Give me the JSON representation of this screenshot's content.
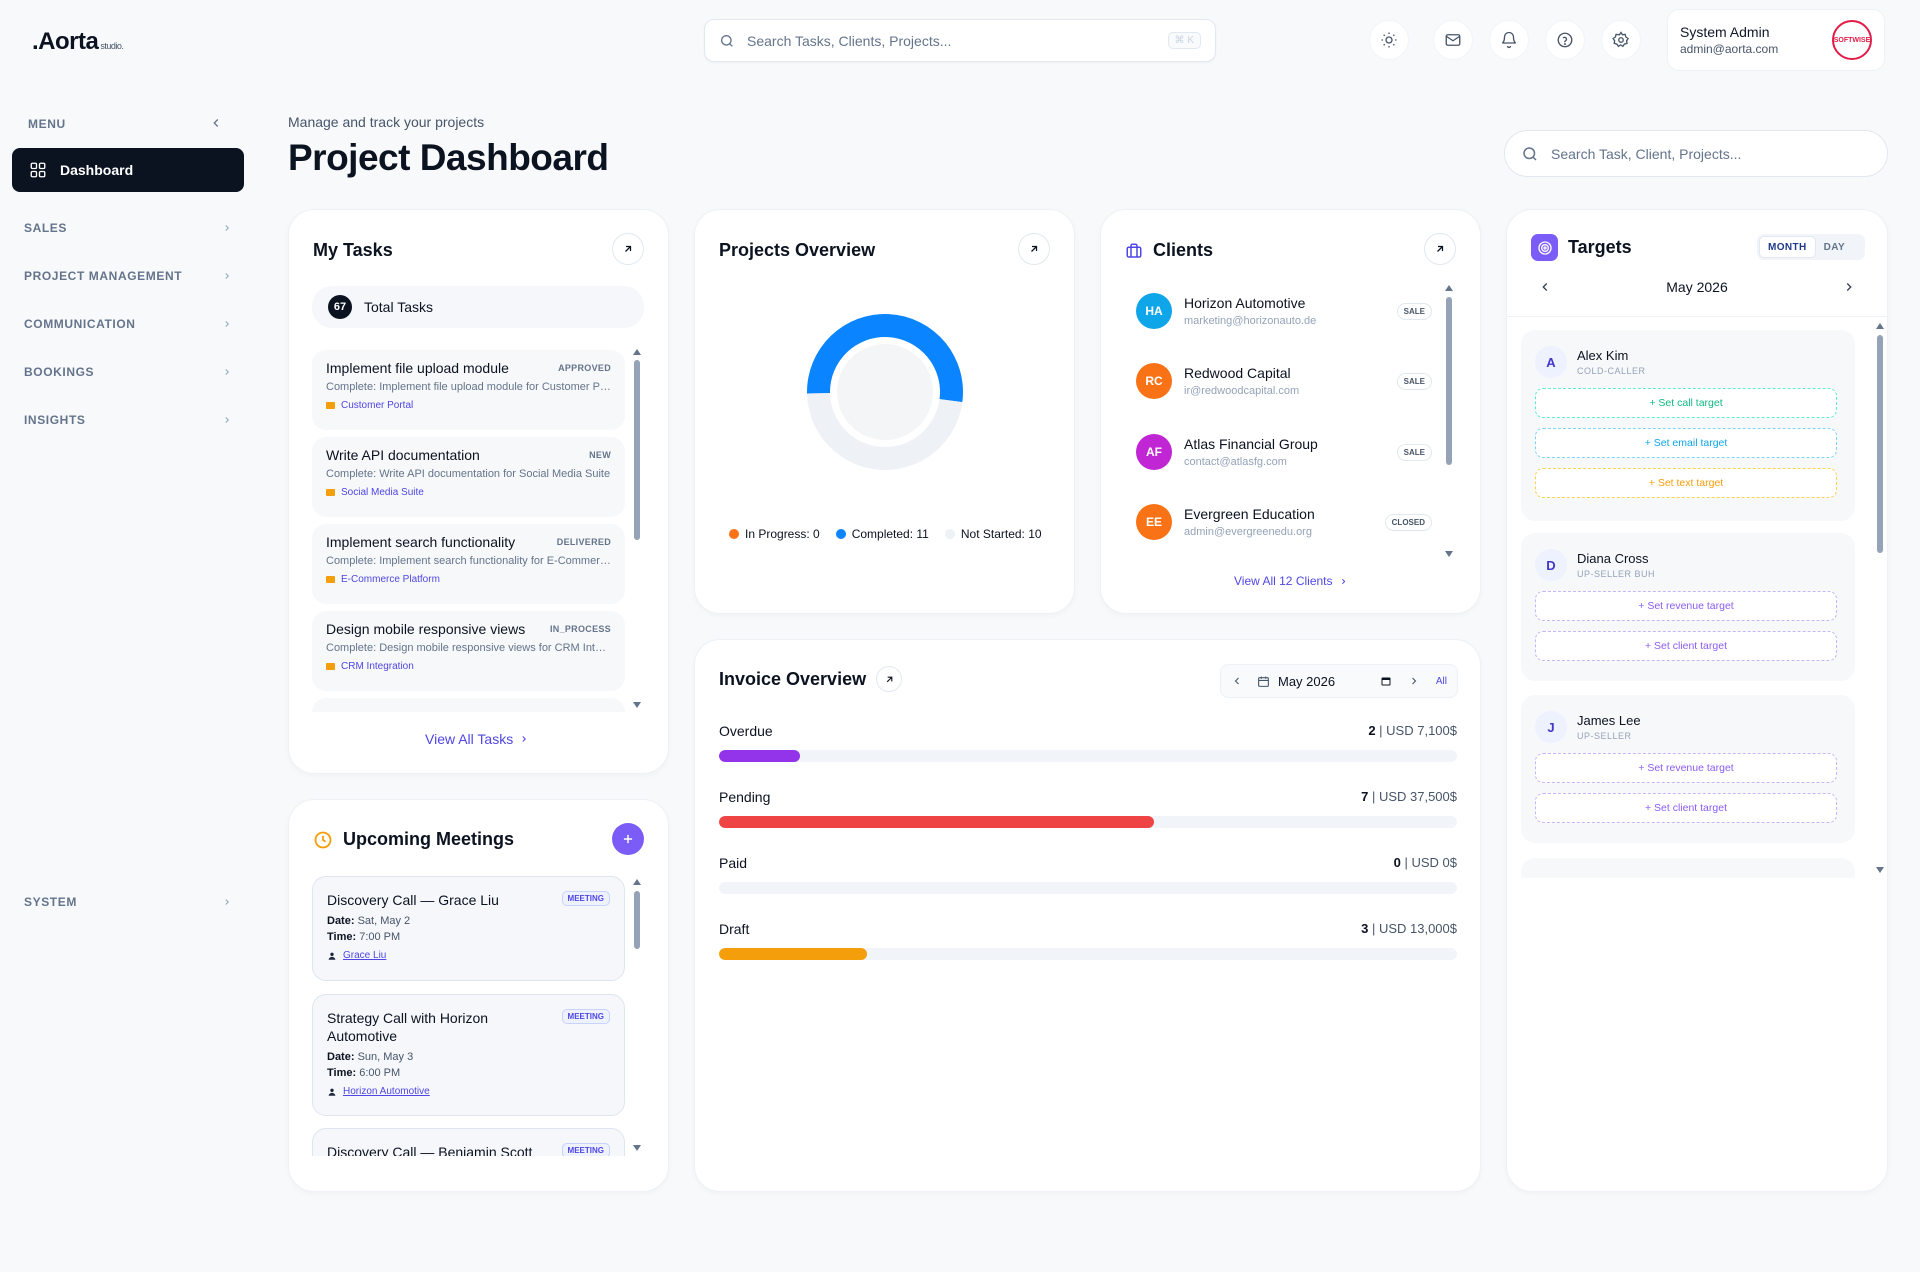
{
  "topbar": {
    "logo": ".Aorta",
    "logo_suffix": "studio.",
    "search_placeholder": "Search Tasks, Clients, Projects...",
    "shortcut": "⌘ K",
    "user_name": "System Admin",
    "user_email": "admin@aorta.com",
    "avatar_text": "SOFTWISE"
  },
  "sidebar": {
    "menu_label": "MENU",
    "active": "Dashboard",
    "items": [
      {
        "label": "SALES"
      },
      {
        "label": "PROJECT MANAGEMENT"
      },
      {
        "label": "COMMUNICATION"
      },
      {
        "label": "BOOKINGS"
      },
      {
        "label": "INSIGHTS"
      }
    ],
    "system": "SYSTEM"
  },
  "header": {
    "subtitle": "Manage and track your projects",
    "title": "Project Dashboard",
    "search_placeholder": "Search Task, Client, Projects..."
  },
  "tasks": {
    "title": "My Tasks",
    "total_count": "67",
    "total_label": "Total Tasks",
    "items": [
      {
        "title": "Implement file upload module",
        "badge": "APPROVED",
        "desc": "Complete: Implement file upload module for Customer Portal",
        "project": "Customer Portal"
      },
      {
        "title": "Write API documentation",
        "badge": "NEW",
        "desc": "Complete: Write API documentation for Social Media Suite",
        "project": "Social Media Suite"
      },
      {
        "title": "Implement search functionality",
        "badge": "DELIVERED",
        "desc": "Complete: Implement search functionality for E-Commerce Platform",
        "project": "E-Commerce Platform"
      },
      {
        "title": "Design mobile responsive views",
        "badge": "IN_PROCESS",
        "desc": "Complete: Design mobile responsive views for CRM Integration",
        "project": "CRM Integration"
      }
    ],
    "view_all": "View All Tasks"
  },
  "projects": {
    "title": "Projects Overview",
    "chart_data": {
      "type": "pie",
      "categories": [
        "In Progress",
        "Completed",
        "Not Started"
      ],
      "values": [
        0,
        11,
        10
      ]
    },
    "legend": [
      {
        "label": "In Progress: 0",
        "color": "#f97316"
      },
      {
        "label": "Completed: 11",
        "color": "#0a84ff"
      },
      {
        "label": "Not Started: 10",
        "color": "#eef1f5"
      }
    ]
  },
  "clients": {
    "title": "Clients",
    "items": [
      {
        "initials": "HA",
        "name": "Horizon Automotive",
        "email": "marketing@horizonauto.de",
        "badge": "SALE",
        "color": "#0ea5e9"
      },
      {
        "initials": "RC",
        "name": "Redwood Capital",
        "email": "ir@redwoodcapital.com",
        "badge": "SALE",
        "color": "#f97316"
      },
      {
        "initials": "AF",
        "name": "Atlas Financial Group",
        "email": "contact@atlasfg.com",
        "badge": "SALE",
        "color": "#c026d3"
      },
      {
        "initials": "EE",
        "name": "Evergreen Education",
        "email": "admin@evergreenedu.org",
        "badge": "CLOSED",
        "color": "#f97316"
      }
    ],
    "view_all": "View All 12 Clients"
  },
  "invoice": {
    "title": "Invoice Overview",
    "month": "May 2026",
    "all": "All",
    "rows": [
      {
        "label": "Overdue",
        "count": "2",
        "amount": "USD 7,100$",
        "pct": 11,
        "color": "#9333ea"
      },
      {
        "label": "Pending",
        "count": "7",
        "amount": "USD 37,500$",
        "pct": 59,
        "color": "#ef4444"
      },
      {
        "label": "Paid",
        "count": "0",
        "amount": "USD 0$",
        "pct": 0,
        "color": "#22c55e"
      },
      {
        "label": "Draft",
        "count": "3",
        "amount": "USD 13,000$",
        "pct": 20,
        "color": "#f59e0b"
      }
    ]
  },
  "meetings": {
    "title": "Upcoming Meetings",
    "items": [
      {
        "title": "Discovery Call — Grace Liu",
        "badge": "MEETING",
        "date_label": "Date:",
        "date": "Sat, May 2",
        "time_label": "Time:",
        "time": "7:00 PM",
        "person": "Grace Liu"
      },
      {
        "title": "Strategy Call with Horizon Automotive",
        "badge": "MEETING",
        "date_label": "Date:",
        "date": "Sun, May 3",
        "time_label": "Time:",
        "time": "6:00 PM",
        "person": "Horizon Automotive"
      },
      {
        "title": "Discovery Call — Benjamin Scott",
        "badge": "MEETING"
      }
    ]
  },
  "targets": {
    "title": "Targets",
    "tab_month": "MONTH",
    "tab_day": "DAY",
    "month": "May 2026",
    "people": [
      {
        "initial": "A",
        "name": "Alex Kim",
        "role": "COLD-CALLER",
        "buttons": [
          "+ Set call target",
          "+ Set email target",
          "+ Set text target"
        ]
      },
      {
        "initial": "D",
        "name": "Diana Cross",
        "role": "UP-SELLER BUH",
        "buttons": [
          "+ Set revenue target",
          "+ Set client target"
        ]
      },
      {
        "initial": "J",
        "name": "James Lee",
        "role": "UP-SELLER",
        "buttons": [
          "+ Set revenue target",
          "+ Set client target"
        ]
      }
    ]
  },
  "colors": {
    "accent": "#4f46e5",
    "dark": "#0b1220",
    "completed": "#0a84ff"
  }
}
